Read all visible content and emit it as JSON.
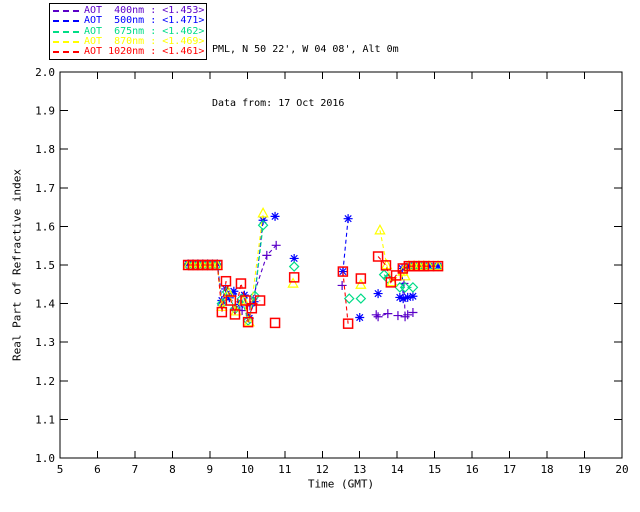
{
  "header": {
    "line1": "PML, N 50 22', W 04 08', Alt 0m",
    "line2": "Data from: 17 Oct 2016"
  },
  "chart_data": {
    "type": "line",
    "title": "",
    "xlabel": "Time (GMT)",
    "ylabel": "Real Part of Refractive index",
    "xlim": [
      5,
      20
    ],
    "ylim": [
      1.0,
      2.0
    ],
    "xticks": [
      5,
      6,
      7,
      8,
      9,
      10,
      11,
      12,
      13,
      14,
      15,
      16,
      17,
      18,
      19,
      20
    ],
    "yticks": [
      1.0,
      1.1,
      1.2,
      1.3,
      1.4,
      1.5,
      1.6,
      1.7,
      1.8,
      1.9,
      2.0
    ],
    "grid": false,
    "legend_position": "top-left-outside",
    "frame_color": "#000000",
    "line_style": "dashed",
    "series": [
      {
        "id": "aot-400nm",
        "legend": "AOT  400nm : <1.453>",
        "color": "#5a00c8",
        "marker": "plus",
        "segments": [
          [
            [
              8.42,
              1.5
            ],
            [
              8.55,
              1.5
            ],
            [
              8.68,
              1.5
            ],
            [
              8.81,
              1.5
            ],
            [
              8.94,
              1.5
            ],
            [
              9.07,
              1.5
            ],
            [
              9.2,
              1.5
            ],
            [
              9.32,
              1.396
            ],
            [
              9.5,
              1.42
            ],
            [
              9.67,
              1.388
            ],
            [
              9.86,
              1.382
            ],
            [
              10.07,
              1.394
            ],
            [
              10.52,
              1.525
            ],
            [
              10.77,
              1.551
            ]
          ],
          [
            [
              12.53,
              1.447
            ]
          ],
          [
            [
              13.44,
              1.371
            ],
            [
              13.49,
              1.366
            ],
            [
              13.75,
              1.374
            ]
          ],
          [
            [
              14.02,
              1.369
            ]
          ],
          [
            [
              14.18,
              1.452
            ],
            [
              14.21,
              1.366
            ]
          ],
          [
            [
              14.28,
              1.371
            ]
          ],
          [
            [
              14.42,
              1.377
            ]
          ]
        ]
      },
      {
        "id": "aot-500nm",
        "legend": "AOT  500nm : <1.471>",
        "color": "#0000ff",
        "marker": "asterisk",
        "segments": [
          [
            [
              8.42,
              1.503
            ],
            [
              8.55,
              1.503
            ],
            [
              8.68,
              1.503
            ],
            [
              8.81,
              1.503
            ],
            [
              8.94,
              1.503
            ],
            [
              9.07,
              1.503
            ],
            [
              9.2,
              1.503
            ],
            [
              9.32,
              1.408
            ],
            [
              9.42,
              1.438
            ],
            [
              9.52,
              1.415
            ],
            [
              9.64,
              1.432
            ],
            [
              9.8,
              1.398
            ],
            [
              9.92,
              1.422
            ],
            [
              10.05,
              1.362
            ],
            [
              10.18,
              1.405
            ],
            [
              10.42,
              1.616
            ]
          ],
          [
            [
              10.74,
              1.626
            ]
          ],
          [
            [
              11.25,
              1.517
            ]
          ],
          [
            [
              12.55,
              1.483
            ],
            [
              12.69,
              1.62
            ]
          ],
          [
            [
              13.0,
              1.364
            ]
          ],
          [
            [
              13.49,
              1.426
            ]
          ],
          [
            [
              14.13,
              1.491
            ],
            [
              14.16,
              1.413
            ]
          ],
          [
            [
              14.07,
              1.416
            ]
          ],
          [
            [
              14.28,
              1.416
            ]
          ],
          [
            [
              14.42,
              1.419
            ]
          ],
          [
            [
              14.31,
              1.497
            ]
          ],
          [
            [
              14.45,
              1.497
            ]
          ],
          [
            [
              14.58,
              1.497
            ]
          ],
          [
            [
              14.71,
              1.497
            ]
          ],
          [
            [
              14.85,
              1.497
            ]
          ],
          [
            [
              15.09,
              1.497
            ]
          ]
        ]
      },
      {
        "id": "aot-675nm",
        "legend": "AOT  675nm : <1.462>",
        "color": "#00dc87",
        "marker": "diamond",
        "segments": [
          [
            [
              8.42,
              1.5
            ],
            [
              8.55,
              1.5
            ],
            [
              8.68,
              1.5
            ],
            [
              8.81,
              1.5
            ],
            [
              8.94,
              1.5
            ],
            [
              9.07,
              1.5
            ],
            [
              9.2,
              1.5
            ],
            [
              9.32,
              1.4
            ],
            [
              9.46,
              1.43
            ],
            [
              9.67,
              1.386
            ],
            [
              9.85,
              1.412
            ],
            [
              10.02,
              1.356
            ],
            [
              10.2,
              1.42
            ],
            [
              10.42,
              1.603
            ]
          ],
          [
            [
              11.25,
              1.496
            ]
          ],
          [
            [
              12.72,
              1.413
            ]
          ],
          [
            [
              13.03,
              1.413
            ]
          ],
          [
            [
              13.65,
              1.475
            ],
            [
              13.75,
              1.465
            ],
            [
              14.07,
              1.442
            ],
            [
              14.21,
              1.442
            ],
            [
              14.42,
              1.442
            ]
          ],
          [
            [
              14.31,
              1.497
            ]
          ],
          [
            [
              14.45,
              1.497
            ]
          ],
          [
            [
              14.58,
              1.497
            ]
          ],
          [
            [
              14.71,
              1.497
            ]
          ],
          [
            [
              14.85,
              1.497
            ]
          ],
          [
            [
              15.09,
              1.497
            ]
          ]
        ]
      },
      {
        "id": "aot-870nm",
        "legend": "AOT  870nm : <1.469>",
        "color": "#ffff00",
        "marker": "triangle",
        "segments": [
          [
            [
              8.42,
              1.498
            ],
            [
              8.55,
              1.498
            ],
            [
              8.68,
              1.498
            ],
            [
              8.81,
              1.498
            ],
            [
              8.94,
              1.498
            ],
            [
              9.07,
              1.498
            ],
            [
              9.2,
              1.498
            ],
            [
              9.32,
              1.392
            ],
            [
              9.5,
              1.428
            ],
            [
              9.7,
              1.38
            ],
            [
              9.9,
              1.408
            ],
            [
              10.05,
              1.352
            ],
            [
              10.42,
              1.634
            ]
          ],
          [
            [
              11.22,
              1.452
            ]
          ],
          [
            [
              13.03,
              1.449
            ]
          ],
          [
            [
              13.54,
              1.59
            ],
            [
              13.72,
              1.5
            ],
            [
              13.86,
              1.456
            ],
            [
              14.15,
              1.483
            ],
            [
              14.21,
              1.471
            ]
          ],
          [
            [
              14.31,
              1.497
            ]
          ],
          [
            [
              14.45,
              1.497
            ]
          ],
          [
            [
              14.58,
              1.497
            ]
          ],
          [
            [
              14.71,
              1.497
            ]
          ],
          [
            [
              14.85,
              1.497
            ]
          ],
          [
            [
              15.09,
              1.497
            ]
          ]
        ]
      },
      {
        "id": "aot-1020nm",
        "legend": "AOT 1020nm : <1.461>",
        "color": "#ff0000",
        "marker": "square",
        "segments": [
          [
            [
              8.42,
              1.5
            ],
            [
              8.55,
              1.5
            ],
            [
              8.68,
              1.5
            ],
            [
              8.81,
              1.5
            ],
            [
              8.94,
              1.5
            ],
            [
              9.07,
              1.5
            ],
            [
              9.2,
              1.5
            ],
            [
              9.32,
              1.378
            ],
            [
              9.43,
              1.458
            ],
            [
              9.56,
              1.408
            ],
            [
              9.67,
              1.372
            ],
            [
              9.83,
              1.452
            ],
            [
              9.95,
              1.408
            ],
            [
              10.02,
              1.352
            ],
            [
              10.12,
              1.388
            ],
            [
              10.34,
              1.408
            ]
          ],
          [
            [
              10.74,
              1.35
            ]
          ],
          [
            [
              11.25,
              1.468
            ]
          ],
          [
            [
              12.55,
              1.483
            ],
            [
              12.69,
              1.348
            ]
          ],
          [
            [
              13.03,
              1.465
            ]
          ],
          [
            [
              13.49,
              1.522
            ],
            [
              13.7,
              1.499
            ],
            [
              13.83,
              1.455
            ],
            [
              13.97,
              1.473
            ],
            [
              14.15,
              1.491
            ],
            [
              14.31,
              1.497
            ],
            [
              14.45,
              1.497
            ],
            [
              14.58,
              1.497
            ],
            [
              14.71,
              1.497
            ],
            [
              14.85,
              1.497
            ],
            [
              15.09,
              1.497
            ]
          ]
        ]
      }
    ]
  }
}
